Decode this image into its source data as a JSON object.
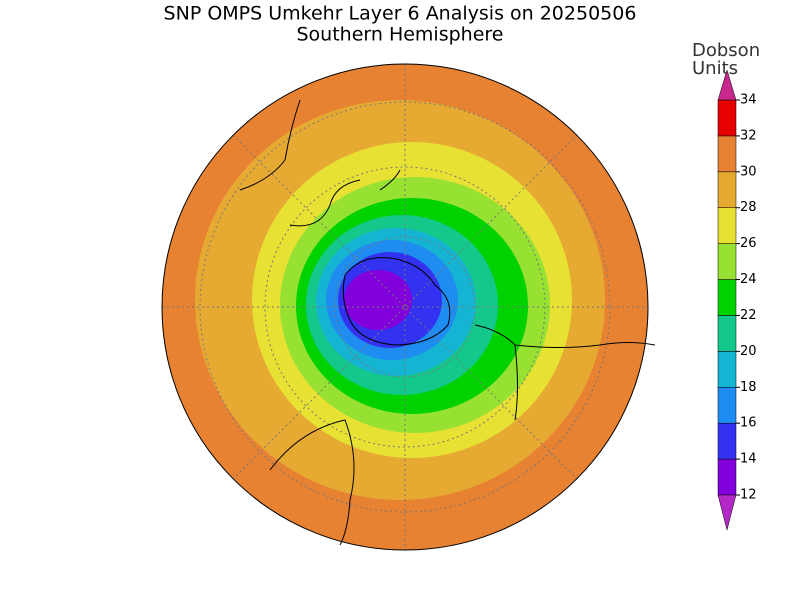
{
  "chart_data": {
    "type": "polar-map",
    "title": "SNP OMPS Umkehr Layer 6 Analysis on 20250506",
    "subtitle": "Southern Hemisphere",
    "colorbar": {
      "label": [
        "Dobson",
        "Units"
      ],
      "ticks": [
        12,
        14,
        16,
        18,
        20,
        22,
        24,
        26,
        28,
        30,
        32,
        34
      ],
      "colors": [
        "#8200dc",
        "#3232f0",
        "#1e8cf0",
        "#14b4d2",
        "#14c88c",
        "#00d200",
        "#96e132",
        "#e6e132",
        "#e6aa32",
        "#e68232",
        "#e60000"
      ],
      "under_color": "#b428c8",
      "over_color": "#c8288c"
    }
  }
}
